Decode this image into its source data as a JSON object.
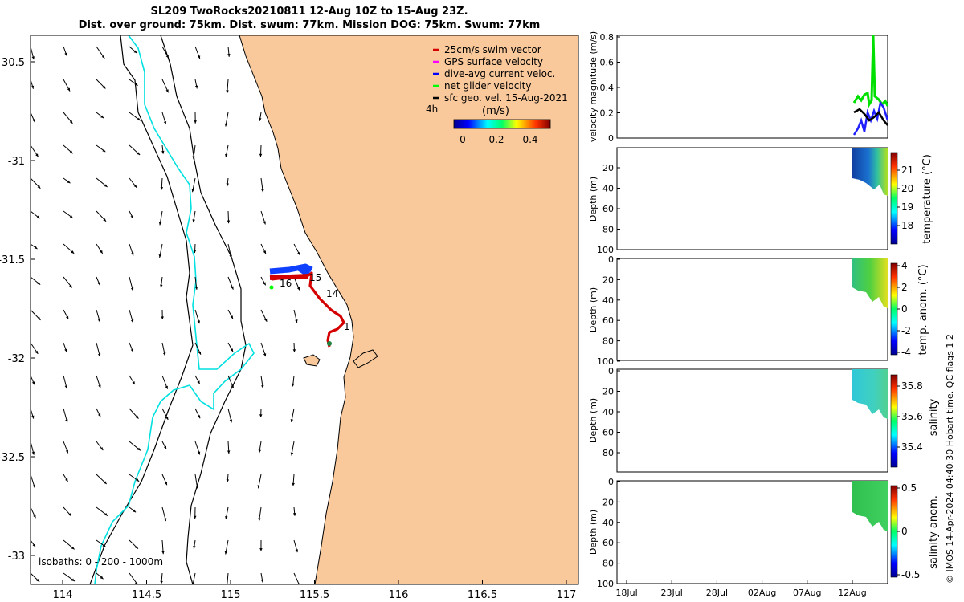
{
  "title": {
    "line1": "SL209 TwoRocks20210811 12-Aug 10Z to 15-Aug 23Z.",
    "line2": "Dist. over ground: 75km. Dist. swum: 77km. Mission DOG: 75km. Swum: 77km"
  },
  "map": {
    "lon_ticks": [
      "114",
      "114.5",
      "115",
      "115.5",
      "116",
      "116.5",
      "117"
    ],
    "lat_ticks": [
      "30.5",
      "-31",
      "-31.5",
      "-32",
      "-32.5",
      "-33"
    ],
    "land_color": "#f9c89b",
    "legend": [
      {
        "label": "25cm/s swim vector",
        "color": "#d40000"
      },
      {
        "label": "GPS surface velocity",
        "color": "#ff00ff"
      },
      {
        "label": "dive-avg current veloc.",
        "color": "#0000ff"
      },
      {
        "label": "net glider velocity",
        "color": "#00ff00"
      },
      {
        "label": "sfc geo. vel. 15-Aug-2021",
        "color": "#000000"
      }
    ],
    "time_marker": "4h",
    "colorbar": {
      "label": "(m/s)",
      "ticks": [
        "0",
        "0.2",
        "0.4"
      ]
    },
    "track_labels": [
      "16",
      "15",
      "14",
      "1"
    ],
    "isobaths_label": "isobaths: 0 - 200 - 1000m"
  },
  "panels": [
    {
      "ylabel": "velocity magnitude (m/s)",
      "yticks": [
        "0.8",
        "0.6",
        "0.4",
        "0.2",
        "0"
      ]
    },
    {
      "ylabel": "Depth (m)",
      "yticks": [
        "20",
        "40",
        "60",
        "80",
        "100"
      ],
      "cb_label": "temperature (°C)",
      "cb_ticks": [
        "21",
        "20",
        "19",
        "18"
      ]
    },
    {
      "ylabel": "Depth (m)",
      "yticks": [
        "0",
        "20",
        "40",
        "60",
        "80",
        "100"
      ],
      "cb_label": "temp. anom. (°C)",
      "cb_ticks": [
        "4",
        "2",
        "0",
        "-2",
        "-4"
      ]
    },
    {
      "ylabel": "Depth (m)",
      "yticks": [
        "0",
        "20",
        "40",
        "60",
        "80"
      ],
      "cb_label": "salinity",
      "cb_ticks": [
        "35.8",
        "35.6",
        "35.4"
      ]
    },
    {
      "ylabel": "Depth (m)",
      "yticks": [
        "0",
        "20",
        "40",
        "60",
        "80",
        "100"
      ],
      "cb_label": "salinity anom.",
      "cb_ticks": [
        "0.5",
        "0",
        "-0.5"
      ]
    }
  ],
  "time_axis": [
    "18Jul",
    "23Jul",
    "28Jul",
    "02Aug",
    "07Aug",
    "12Aug"
  ],
  "footer": "© IMOS 14-Apr-2024 04:40:30 Hobart time. QC flags 1  2"
}
